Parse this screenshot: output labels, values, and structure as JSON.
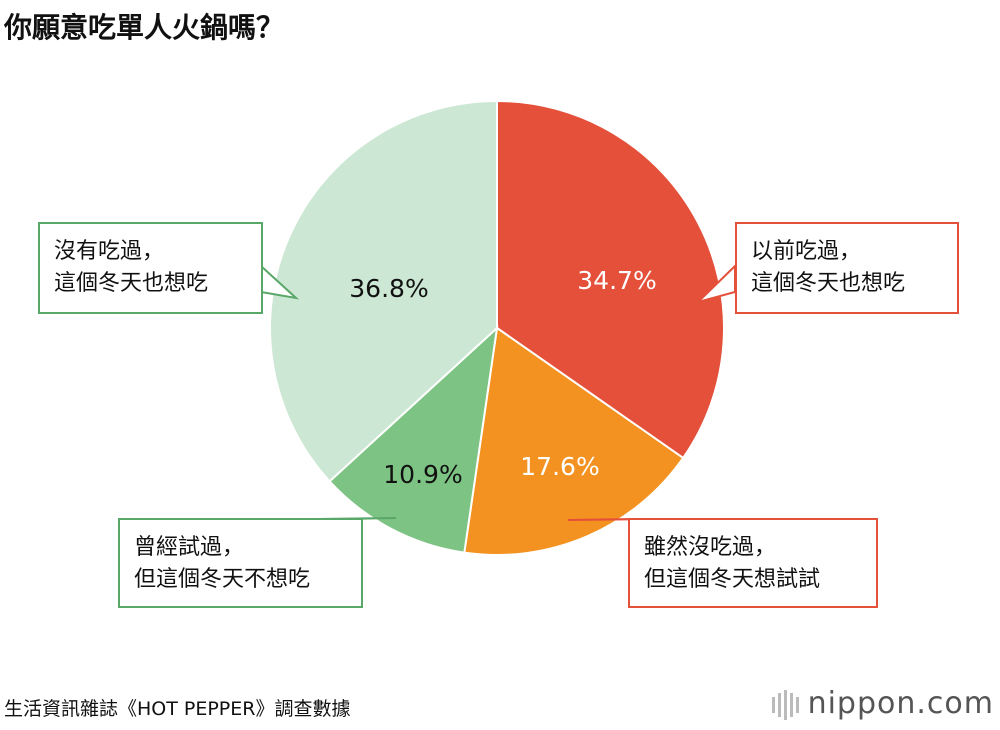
{
  "chart_data": {
    "type": "pie",
    "title": "你願意吃單人火鍋嗎？",
    "categories": [
      "以前吃過，\n這個冬天也想吃",
      "雖然沒吃過，\n但這個冬天想試試",
      "曾經試過，\n但這個冬天不想吃",
      "沒有吃過，\n這個冬天也想吃"
    ],
    "values": [
      34.7,
      17.6,
      10.9,
      36.8
    ],
    "value_labels": [
      "34.7%",
      "17.6%",
      "10.9%",
      "36.8%"
    ],
    "colors": [
      "#e4503a",
      "#f39220",
      "#7dc383",
      "#cce7d3"
    ],
    "value_label_colors": [
      "#ffffff",
      "#ffffff",
      "#111111",
      "#111111"
    ],
    "source": "生活資訊雜誌《HOT PEPPER》調查數據",
    "brand": "nippon.com"
  }
}
